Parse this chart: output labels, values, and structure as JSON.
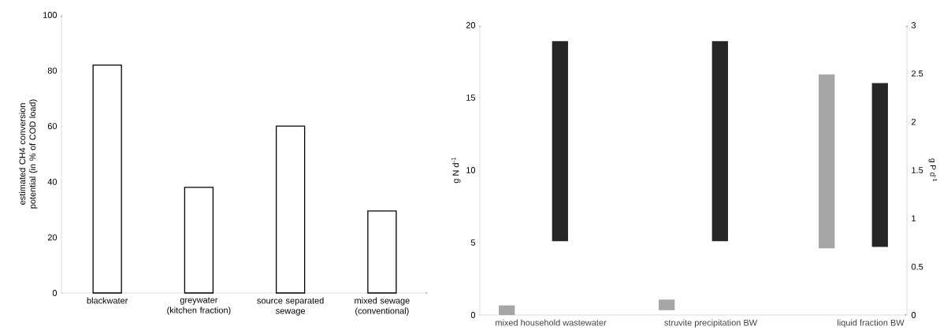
{
  "chart_data": [
    {
      "type": "bar",
      "ylabel": "estimated CH4 conversion potential (in % of COD load)",
      "categories": [
        "blackwater",
        "greywater (kitchen fraction)",
        "source separated sewage",
        "mixed sewage (conventional)"
      ],
      "values": [
        82,
        38,
        60,
        29.5
      ],
      "color": "#ffffff",
      "ylim": [
        0,
        100
      ],
      "yticks": [
        0,
        20,
        40,
        60,
        80,
        100
      ]
    },
    {
      "type": "bar",
      "ylabel": "g N d$^{-1}$",
      "y2label": "g P d$^{-1}$",
      "categories": [
        "mixed household wastewater",
        "struvite precipitation BW",
        "liquid fraction BW"
      ],
      "series": [
        {
          "color": "#a6a6a6",
          "axis": "y2",
          "base": [
            0,
            0.05,
            0.69
          ],
          "values": [
            0.1,
            0.11,
            1.8
          ]
        },
        {
          "color": "#262626",
          "axis": "y",
          "base": [
            5.1,
            5.1,
            4.7
          ],
          "values": [
            13.8,
            13.8,
            11.3
          ]
        }
      ],
      "ylim": [
        0,
        20
      ],
      "yticks": [
        0,
        5,
        10,
        15,
        20
      ],
      "y2lim": [
        0,
        3
      ],
      "y2ticks": [
        0,
        0.5,
        1,
        1.5,
        2,
        2.5,
        3
      ]
    }
  ]
}
